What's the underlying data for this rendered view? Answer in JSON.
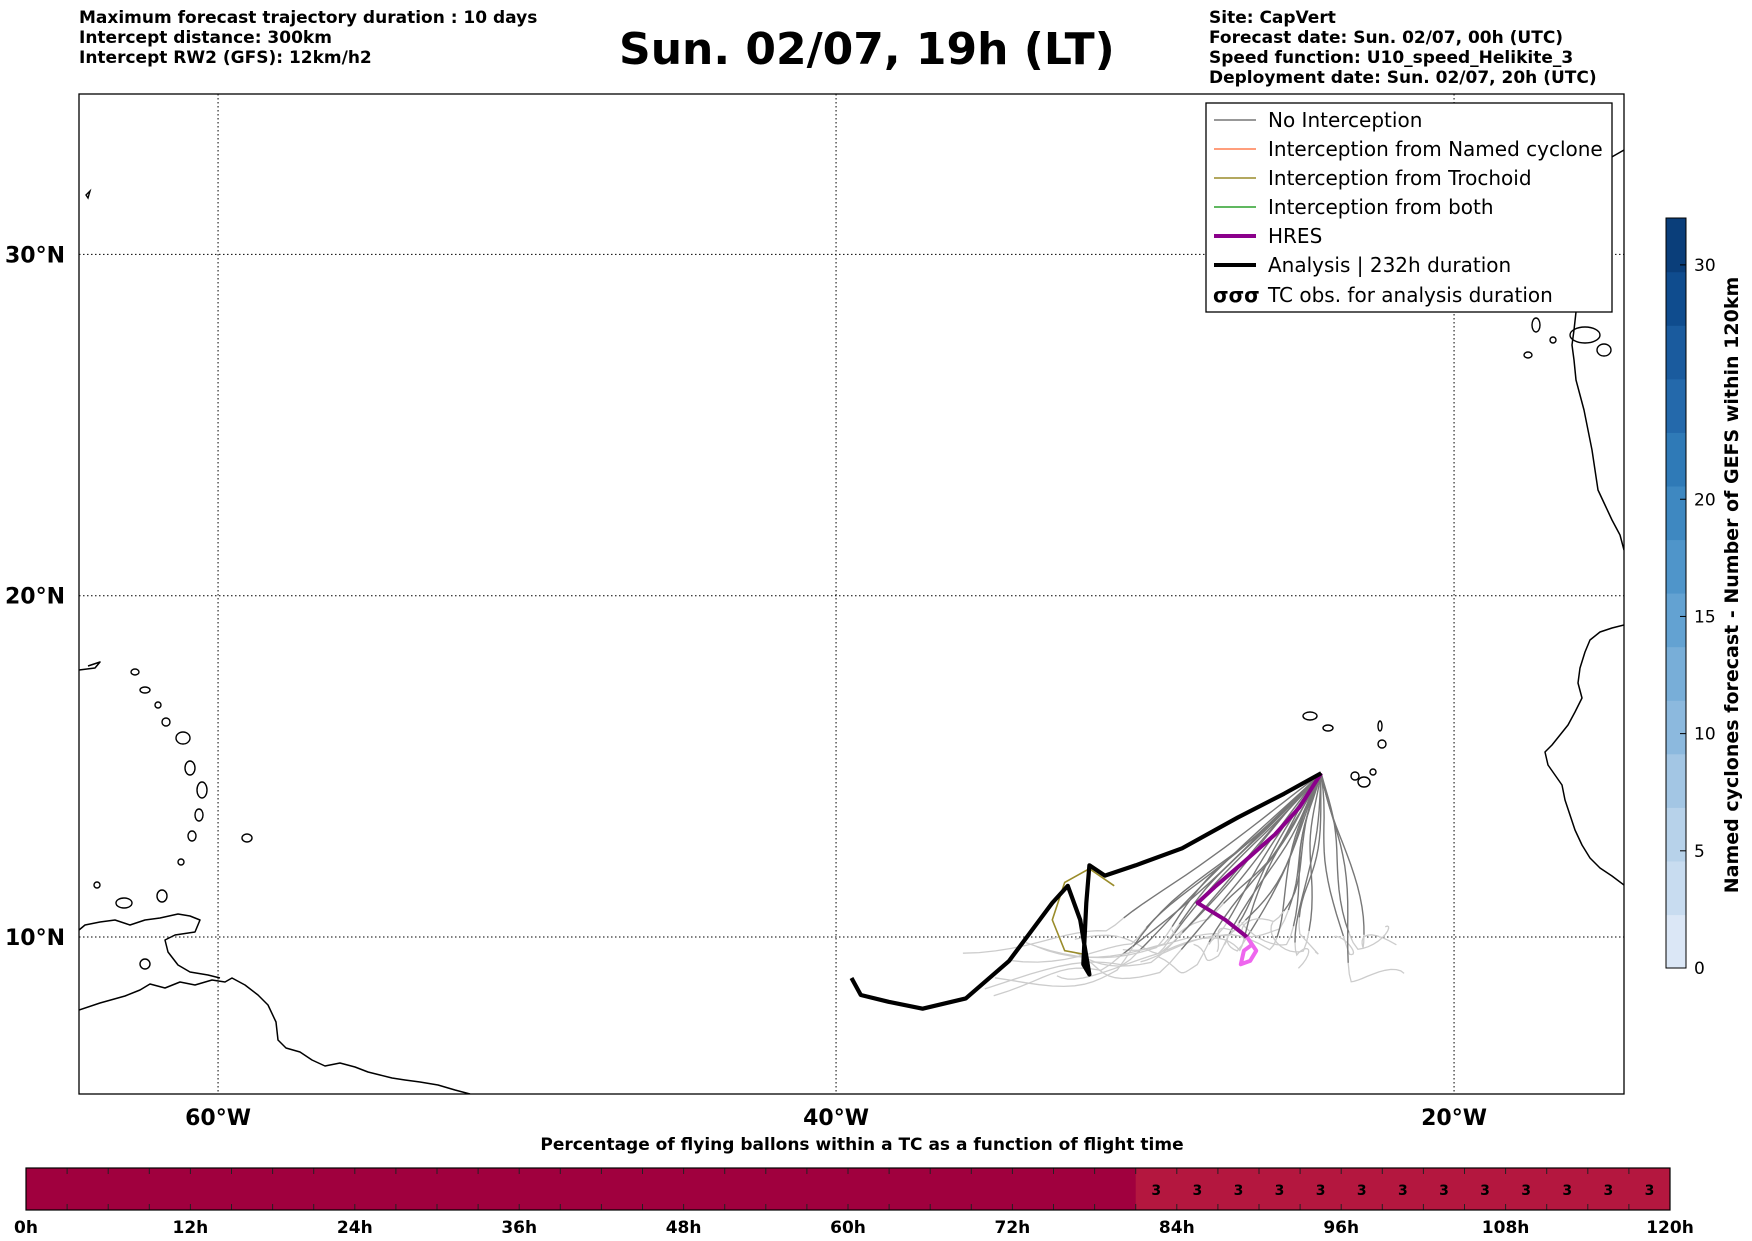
{
  "header": {
    "left_lines": [
      "Maximum forecast trajectory duration : 10 days",
      "Intercept distance: 300km",
      "Intercept RW2 (GFS):  12km/h2"
    ],
    "title": "Sun. 02/07, 19h (LT)",
    "right_lines": [
      "Site: CapVert",
      "Forecast date: Sun. 02/07, 00h (UTC)",
      "Speed function: U10_speed_Helikite_3",
      "Deployment date: Sun. 02/07, 20h (UTC)"
    ]
  },
  "map": {
    "extent": {
      "lon_min": -64.5,
      "lon_max": -14.5,
      "lat_min": 5.4,
      "lat_max": 34.7
    },
    "lat_ticks": [
      {
        "value": 30,
        "label": "30°N"
      },
      {
        "value": 20,
        "label": "20°N"
      },
      {
        "value": 10,
        "label": "10°N"
      }
    ],
    "lon_ticks": [
      {
        "value": -60,
        "label": "60°W"
      },
      {
        "value": -40,
        "label": "40°W"
      },
      {
        "value": -20,
        "label": "20°W"
      }
    ],
    "colors": {
      "no_interception": "#777777",
      "no_interception_late": "#cccccc",
      "named_cyclone": "#ff7f50",
      "trochoid": "#9a8c2a",
      "both": "#2ca02c",
      "hres": "#8b008b",
      "hres_late": "#ee66ee",
      "analysis": "#000000",
      "coast": "#000000"
    }
  },
  "legend": {
    "items": [
      {
        "label": "No Interception",
        "color": "#777777",
        "width": 1.5
      },
      {
        "label": "Interception from Named cyclone",
        "color": "#ff7f50",
        "width": 1.5
      },
      {
        "label": "Interception from Trochoid",
        "color": "#9a8c2a",
        "width": 1.5
      },
      {
        "label": "Interception from both",
        "color": "#2ca02c",
        "width": 1.5
      },
      {
        "label": "HRES",
        "color": "#8b008b",
        "width": 4
      },
      {
        "label": "Analysis | 232h duration",
        "color": "#000000",
        "width": 4
      }
    ],
    "tc_obs_label": "TC obs. for analysis duration",
    "tc_symbol": "σσσ"
  },
  "colorbar": {
    "label": "Named cyclones forecast - Number of GEFS within 120km",
    "min": 0,
    "max": 32,
    "ticks": [
      0,
      5,
      10,
      15,
      20,
      30
    ],
    "colors": [
      "#dbe7f6",
      "#c8dcf0",
      "#b7d2ea",
      "#a3c6e4",
      "#8cb9de",
      "#78aed8",
      "#63a2d2",
      "#4f95ca",
      "#3e88c1",
      "#2f7ab7",
      "#2469ab",
      "#1a5b9e",
      "#0f4c8e",
      "#0a3e7a"
    ]
  },
  "flight_bar": {
    "title": "Percentage of flying ballons within a TC as a function of flight time",
    "tick_labels": [
      "0h",
      "12h",
      "24h",
      "36h",
      "48h",
      "60h",
      "72h",
      "84h",
      "96h",
      "108h",
      "120h"
    ],
    "max_hours": 120,
    "base_color": "#a0003e",
    "highlight_color": "#b4173f",
    "highlight_start_hours": 81,
    "cell_hours": 3,
    "cell_label": "3",
    "cell_count": 13
  },
  "chart_data": {
    "type": "trajectory_map",
    "site": "CapVert",
    "analysis_track": [
      [
        -24.3,
        14.8
      ],
      [
        -25.5,
        14.2
      ],
      [
        -27.0,
        13.5
      ],
      [
        -28.8,
        12.6
      ],
      [
        -30.3,
        12.1
      ],
      [
        -31.3,
        11.8
      ],
      [
        -31.8,
        12.1
      ],
      [
        -31.9,
        11.0
      ],
      [
        -32.0,
        9.2
      ],
      [
        -31.8,
        8.9
      ],
      [
        -32.1,
        10.5
      ],
      [
        -32.5,
        11.5
      ],
      [
        -33.0,
        11.0
      ],
      [
        -34.4,
        9.3
      ],
      [
        -35.8,
        8.2
      ],
      [
        -37.2,
        7.9
      ],
      [
        -38.3,
        8.1
      ],
      [
        -39.2,
        8.3
      ],
      [
        -39.5,
        8.8
      ]
    ],
    "hres_track": [
      [
        -24.3,
        14.8
      ],
      [
        -25.0,
        13.8
      ],
      [
        -25.8,
        13.0
      ],
      [
        -26.8,
        12.2
      ],
      [
        -27.7,
        11.5
      ],
      [
        -28.3,
        11.0
      ],
      [
        -27.4,
        10.5
      ],
      [
        -26.7,
        10.0
      ]
    ],
    "hres_late_track": [
      [
        -26.7,
        10.0
      ],
      [
        -26.4,
        9.6
      ],
      [
        -26.6,
        9.3
      ],
      [
        -26.9,
        9.2
      ],
      [
        -26.8,
        9.6
      ],
      [
        -26.5,
        9.8
      ]
    ],
    "trochoid_track": [
      [
        -31.0,
        11.5
      ],
      [
        -31.8,
        12.0
      ],
      [
        -32.6,
        11.6
      ],
      [
        -33.0,
        10.5
      ],
      [
        -32.6,
        9.6
      ],
      [
        -32.0,
        9.5
      ]
    ],
    "ensemble_member_count_approx": 30
  }
}
